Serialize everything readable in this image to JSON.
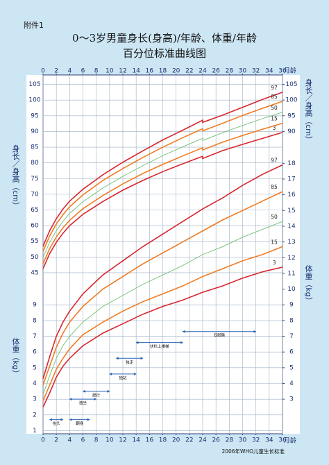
{
  "header": "附件1",
  "title": "0～3岁男童身长(身高)/年龄、体重/年龄",
  "subtitle": "百分位标准曲线图",
  "source": "2006年WHO儿童生长标准",
  "chart_data": [
    {
      "type": "line",
      "y_label": "身长／身高（cm）",
      "x_label": "月龄",
      "xlim": [
        0,
        36
      ],
      "xticks": [
        0,
        2,
        4,
        6,
        8,
        10,
        12,
        14,
        16,
        18,
        20,
        22,
        24,
        26,
        28,
        30,
        32,
        34,
        36
      ],
      "ylim": [
        43,
        108
      ],
      "yticks": [
        45,
        50,
        55,
        60,
        65,
        70,
        75,
        80,
        85,
        90,
        95,
        100,
        105
      ],
      "right_yticks": [
        90,
        95,
        100,
        105
      ],
      "grid": true,
      "x": [
        0,
        1,
        2,
        3,
        4,
        6,
        9,
        12,
        15,
        18,
        21,
        24,
        24,
        27,
        30,
        33,
        36
      ],
      "series": [
        {
          "name": "97",
          "color": "#d7262e",
          "values": [
            53.4,
            58.4,
            62.2,
            65.3,
            67.8,
            71.6,
            76.2,
            80.2,
            83.8,
            87.3,
            90.4,
            93.6,
            92.9,
            95.2,
            97.7,
            100.2,
            102.5
          ]
        },
        {
          "name": "85",
          "color": "#f07b22",
          "values": [
            51.8,
            56.7,
            60.5,
            63.5,
            66.0,
            69.8,
            74.4,
            78.2,
            81.7,
            85.0,
            88.0,
            90.9,
            90.2,
            92.6,
            95.1,
            97.4,
            99.6
          ]
        },
        {
          "name": "50",
          "color": "#6fbf73",
          "values": [
            49.9,
            54.7,
            58.4,
            61.4,
            63.9,
            67.6,
            72.0,
            75.7,
            79.1,
            82.3,
            85.1,
            87.8,
            87.1,
            89.6,
            91.9,
            94.1,
            96.1
          ]
        },
        {
          "name": "15",
          "color": "#f07b22",
          "values": [
            47.9,
            52.7,
            56.4,
            59.3,
            61.7,
            65.4,
            69.6,
            73.3,
            76.6,
            79.5,
            82.2,
            84.8,
            84.1,
            86.6,
            88.7,
            90.7,
            92.6
          ]
        },
        {
          "name": "3",
          "color": "#d7262e",
          "values": [
            46.3,
            51.1,
            54.7,
            57.6,
            60.0,
            63.6,
            67.7,
            71.3,
            74.4,
            77.2,
            79.7,
            82.1,
            81.4,
            83.9,
            85.9,
            87.8,
            89.7
          ]
        }
      ]
    },
    {
      "type": "line",
      "y_label": "体重（kg）",
      "x_label": "月龄",
      "xlim": [
        0,
        36
      ],
      "xticks": [
        0,
        2,
        4,
        6,
        8,
        10,
        12,
        14,
        16,
        18,
        20,
        22,
        24,
        26,
        28,
        30,
        32,
        34,
        36
      ],
      "ylim": [
        0.8,
        18.5
      ],
      "yticks": [
        1,
        2,
        3,
        4,
        5,
        6,
        7,
        8,
        9
      ],
      "right_yticks": [
        3,
        4,
        5,
        6,
        7,
        8,
        9,
        10,
        11,
        12,
        13,
        14,
        15,
        16,
        17,
        18
      ],
      "grid": true,
      "x": [
        0,
        1,
        2,
        3,
        4,
        6,
        9,
        12,
        15,
        18,
        21,
        24,
        27,
        30,
        33,
        36
      ],
      "series": [
        {
          "name": "97",
          "color": "#d7262e",
          "values": [
            4.3,
            5.7,
            7.0,
            7.9,
            8.6,
            9.7,
            10.9,
            11.8,
            12.7,
            13.5,
            14.3,
            15.1,
            15.8,
            16.6,
            17.3,
            17.9
          ]
        },
        {
          "name": "85",
          "color": "#f07b22",
          "values": [
            3.9,
            5.1,
            6.3,
            7.2,
            7.9,
            8.9,
            10.0,
            10.8,
            11.6,
            12.3,
            13.0,
            13.7,
            14.4,
            15.0,
            15.6,
            16.2
          ]
        },
        {
          "name": "50",
          "color": "#6fbf73",
          "values": [
            3.3,
            4.5,
            5.6,
            6.4,
            7.0,
            7.9,
            8.9,
            9.6,
            10.3,
            10.9,
            11.5,
            12.2,
            12.7,
            13.3,
            13.8,
            14.3
          ]
        },
        {
          "name": "15",
          "color": "#f07b22",
          "values": [
            2.9,
            3.9,
            4.9,
            5.6,
            6.2,
            7.1,
            7.9,
            8.6,
            9.2,
            9.7,
            10.2,
            10.8,
            11.3,
            11.8,
            12.2,
            12.7
          ]
        },
        {
          "name": "3",
          "color": "#d7262e",
          "values": [
            2.5,
            3.4,
            4.4,
            5.1,
            5.6,
            6.4,
            7.2,
            7.8,
            8.4,
            8.9,
            9.3,
            9.8,
            10.2,
            10.7,
            11.1,
            11.4
          ]
        }
      ],
      "milestones": [
        {
          "label": "抬头",
          "range": [
            1,
            3
          ],
          "y": 1.7
        },
        {
          "label": "翻身",
          "range": [
            4,
            7
          ],
          "y": 1.7
        },
        {
          "label": "独坐",
          "range": [
            4,
            8
          ],
          "y": 3.0
        },
        {
          "label": "爬行",
          "range": [
            6,
            10
          ],
          "y": 3.5
        },
        {
          "label": "独站",
          "range": [
            10,
            14
          ],
          "y": 4.6
        },
        {
          "label": "独走",
          "range": [
            11,
            15
          ],
          "y": 5.6
        },
        {
          "label": "扶栏上楼梯",
          "range": [
            14,
            21
          ],
          "y": 6.6
        },
        {
          "label": "双脚跳",
          "range": [
            21,
            32
          ],
          "y": 7.3
        }
      ]
    }
  ]
}
